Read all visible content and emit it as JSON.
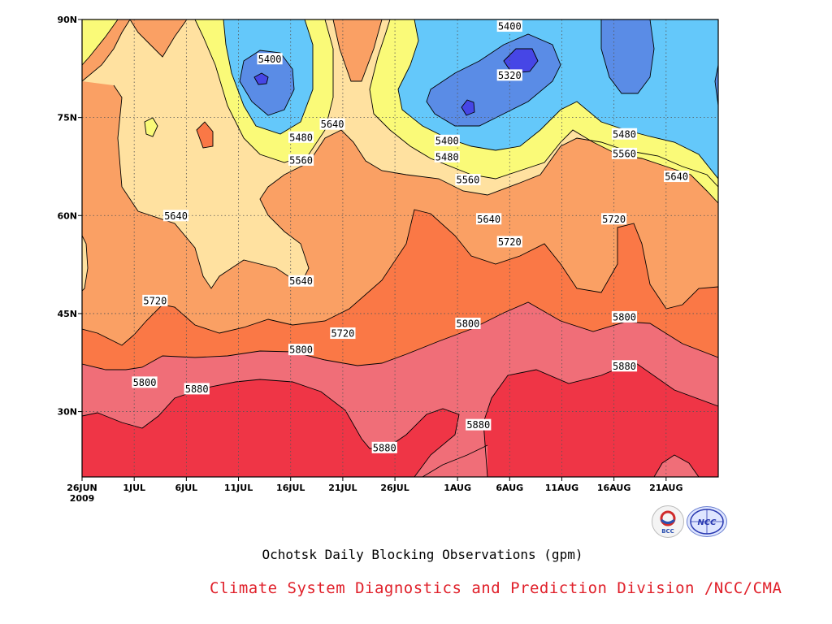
{
  "chart_data": {
    "type": "heatmap",
    "title": "Ochotsk Daily Blocking Observations (gpm)",
    "credit": "Climate System Diagnostics and Prediction Division /NCC/CMA",
    "start_date": "26JUN 2009",
    "x_tick_labels": [
      "26JUN",
      "1JUL",
      "6JUL",
      "11JUL",
      "16JUL",
      "21JUL",
      "26JUL",
      "1AUG",
      "6AUG",
      "11AUG",
      "16AUG",
      "21AUG"
    ],
    "x_year_label": "2009",
    "y_tick_labels": [
      "90N",
      "75N",
      "60N",
      "45N",
      "30N"
    ],
    "y_tick_values": [
      90,
      75,
      60,
      45,
      30
    ],
    "ylim": [
      20,
      90
    ],
    "xlim": [
      "26JUN",
      "26AUG"
    ],
    "contour_levels": [
      5320,
      5400,
      5480,
      5560,
      5640,
      5720,
      5800,
      5880
    ],
    "contour_labels": [
      {
        "text": "5400",
        "date": "14JUL",
        "lat": 84
      },
      {
        "text": "5480",
        "date": "17JUL",
        "lat": 72
      },
      {
        "text": "5560",
        "date": "17JUL",
        "lat": 68.5
      },
      {
        "text": "5640",
        "date": "20JUL",
        "lat": 74
      },
      {
        "text": "5640",
        "date": "5JUL",
        "lat": 60
      },
      {
        "text": "5640",
        "date": "17JUL",
        "lat": 50
      },
      {
        "text": "5720",
        "date": "3JUL",
        "lat": 47
      },
      {
        "text": "5720",
        "date": "21JUL",
        "lat": 42
      },
      {
        "text": "5800",
        "date": "2JUL",
        "lat": 34.5
      },
      {
        "text": "5800",
        "date": "17JUL",
        "lat": 39.5
      },
      {
        "text": "5880",
        "date": "7JUL",
        "lat": 33.5
      },
      {
        "text": "5880",
        "date": "25JUL",
        "lat": 24.5
      },
      {
        "text": "5400",
        "date": "6AUG",
        "lat": 89
      },
      {
        "text": "5320",
        "date": "6AUG",
        "lat": 81.5
      },
      {
        "text": "5400",
        "date": "31JUL",
        "lat": 71.5
      },
      {
        "text": "5480",
        "date": "31JUL",
        "lat": 69
      },
      {
        "text": "5560",
        "date": "2AUG",
        "lat": 65.5
      },
      {
        "text": "5480",
        "date": "17AUG",
        "lat": 72.5
      },
      {
        "text": "5560",
        "date": "17AUG",
        "lat": 69.5
      },
      {
        "text": "5640",
        "date": "22AUG",
        "lat": 66
      },
      {
        "text": "5640",
        "date": "4AUG",
        "lat": 59.5
      },
      {
        "text": "5720",
        "date": "6AUG",
        "lat": 56
      },
      {
        "text": "5720",
        "date": "16AUG",
        "lat": 59.5
      },
      {
        "text": "5800",
        "date": "2AUG",
        "lat": 43.5
      },
      {
        "text": "5800",
        "date": "17AUG",
        "lat": 44.5
      },
      {
        "text": "5880",
        "date": "17AUG",
        "lat": 37
      },
      {
        "text": "5880",
        "date": "3AUG",
        "lat": 28
      }
    ],
    "colors": {
      "below_5320": "#4646e6",
      "5320_5400": "#5a8ce6",
      "5400_5480": "#64c8fa",
      "5480_5560": "#fafa78",
      "5560_5640": "#ffe1a0",
      "5640_5720": "#faa064",
      "5720_5800": "#fa7846",
      "5800_5880": "#f06e78",
      "above_5880": "#ef3546"
    },
    "grid": true,
    "logos": [
      "BCC",
      "NCC"
    ]
  }
}
